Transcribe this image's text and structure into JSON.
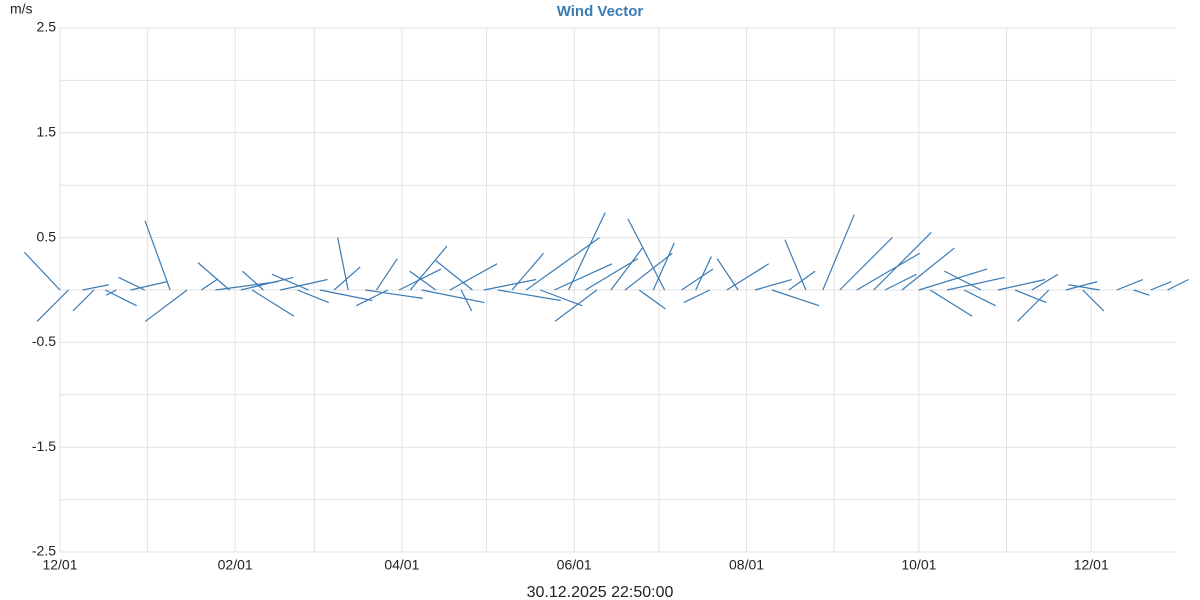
{
  "chart_data": {
    "type": "stick",
    "title": "Wind Vector",
    "y_label": "m/s",
    "x_label": "30.12.2025 22:50:00",
    "color": "#3b7bb4",
    "xlim": [
      0,
      395
    ],
    "xticks": [
      {
        "value": 0,
        "label": "12/01"
      },
      {
        "value": 62,
        "label": "02/01"
      },
      {
        "value": 121,
        "label": "04/01"
      },
      {
        "value": 182,
        "label": "06/01"
      },
      {
        "value": 243,
        "label": "08/01"
      },
      {
        "value": 304,
        "label": "10/01"
      },
      {
        "value": 365,
        "label": "12/01"
      }
    ],
    "xminor": [
      31,
      90,
      151,
      212,
      274,
      335
    ],
    "ylim": [
      -2.5,
      2.5
    ],
    "yticks": [
      2.5,
      1.5,
      0.5,
      -0.5,
      -1.5,
      -2.5
    ],
    "yminor": [
      2,
      1,
      0,
      -1,
      -2
    ],
    "grid": true,
    "x": [
      0,
      3,
      8,
      12,
      16,
      20,
      25,
      30,
      39,
      45,
      50,
      55,
      60,
      64,
      68,
      72,
      78,
      84,
      88,
      92,
      97,
      102,
      108,
      112,
      116,
      120,
      124,
      128,
      133,
      138,
      142,
      146,
      150,
      155,
      160,
      165,
      170,
      175,
      180,
      186,
      190,
      195,
      200,
      205,
      210,
      214,
      220,
      225,
      230,
      236,
      240,
      246,
      252,
      258,
      264,
      270,
      276,
      282,
      288,
      292,
      298,
      304,
      308,
      314,
      320,
      326,
      332,
      338,
      344,
      350,
      356,
      362,
      368,
      374,
      380,
      386,
      392
    ],
    "u": [
      -0.34,
      -0.3,
      0.25,
      -0.2,
      0.3,
      -0.1,
      0.35,
      -0.25,
      -0.24,
      -0.4,
      0.15,
      0.6,
      -0.3,
      0.5,
      0.4,
      -0.2,
      0.45,
      0.3,
      -0.35,
      0.5,
      0.25,
      -0.1,
      0.55,
      0.2,
      -0.3,
      0.4,
      0.35,
      0.6,
      -0.25,
      0.45,
      0.1,
      -0.35,
      0.5,
      0.6,
      0.3,
      0.7,
      0.4,
      0.55,
      0.35,
      0.5,
      -0.4,
      0.3,
      0.45,
      0.25,
      0.2,
      -0.35,
      0.3,
      0.15,
      -0.25,
      0.4,
      -0.2,
      0.35,
      0.45,
      0.25,
      -0.2,
      0.3,
      0.5,
      0.6,
      0.55,
      0.3,
      0.5,
      0.65,
      0.4,
      0.55,
      0.3,
      -0.35,
      0.45,
      0.3,
      0.25,
      -0.3,
      0.3,
      0.2,
      -0.3,
      0.25,
      0.15,
      0.2,
      0.2
    ],
    "v": [
      0.36,
      -0.3,
      0.05,
      -0.2,
      -0.15,
      -0.05,
      0.08,
      0.12,
      0.66,
      -0.3,
      0.1,
      0.08,
      0.26,
      0.12,
      -0.25,
      0.18,
      0.1,
      -0.12,
      0.15,
      -0.1,
      0.22,
      0.5,
      -0.08,
      0.3,
      -0.15,
      0.2,
      0.42,
      -0.12,
      0.18,
      0.25,
      -0.2,
      0.28,
      0.1,
      -0.1,
      0.35,
      0.5,
      -0.15,
      0.25,
      0.74,
      0.3,
      -0.3,
      0.4,
      0.35,
      -0.18,
      0.45,
      0.68,
      0.2,
      0.32,
      -0.12,
      0.25,
      0.3,
      0.1,
      -0.15,
      0.18,
      0.48,
      0.72,
      0.5,
      0.35,
      0.55,
      0.15,
      0.4,
      0.2,
      -0.25,
      0.12,
      -0.15,
      0.18,
      0.1,
      -0.12,
      0.15,
      -0.3,
      0.08,
      -0.2,
      0.05,
      0.1,
      -0.05,
      0.08,
      0.1
    ]
  }
}
